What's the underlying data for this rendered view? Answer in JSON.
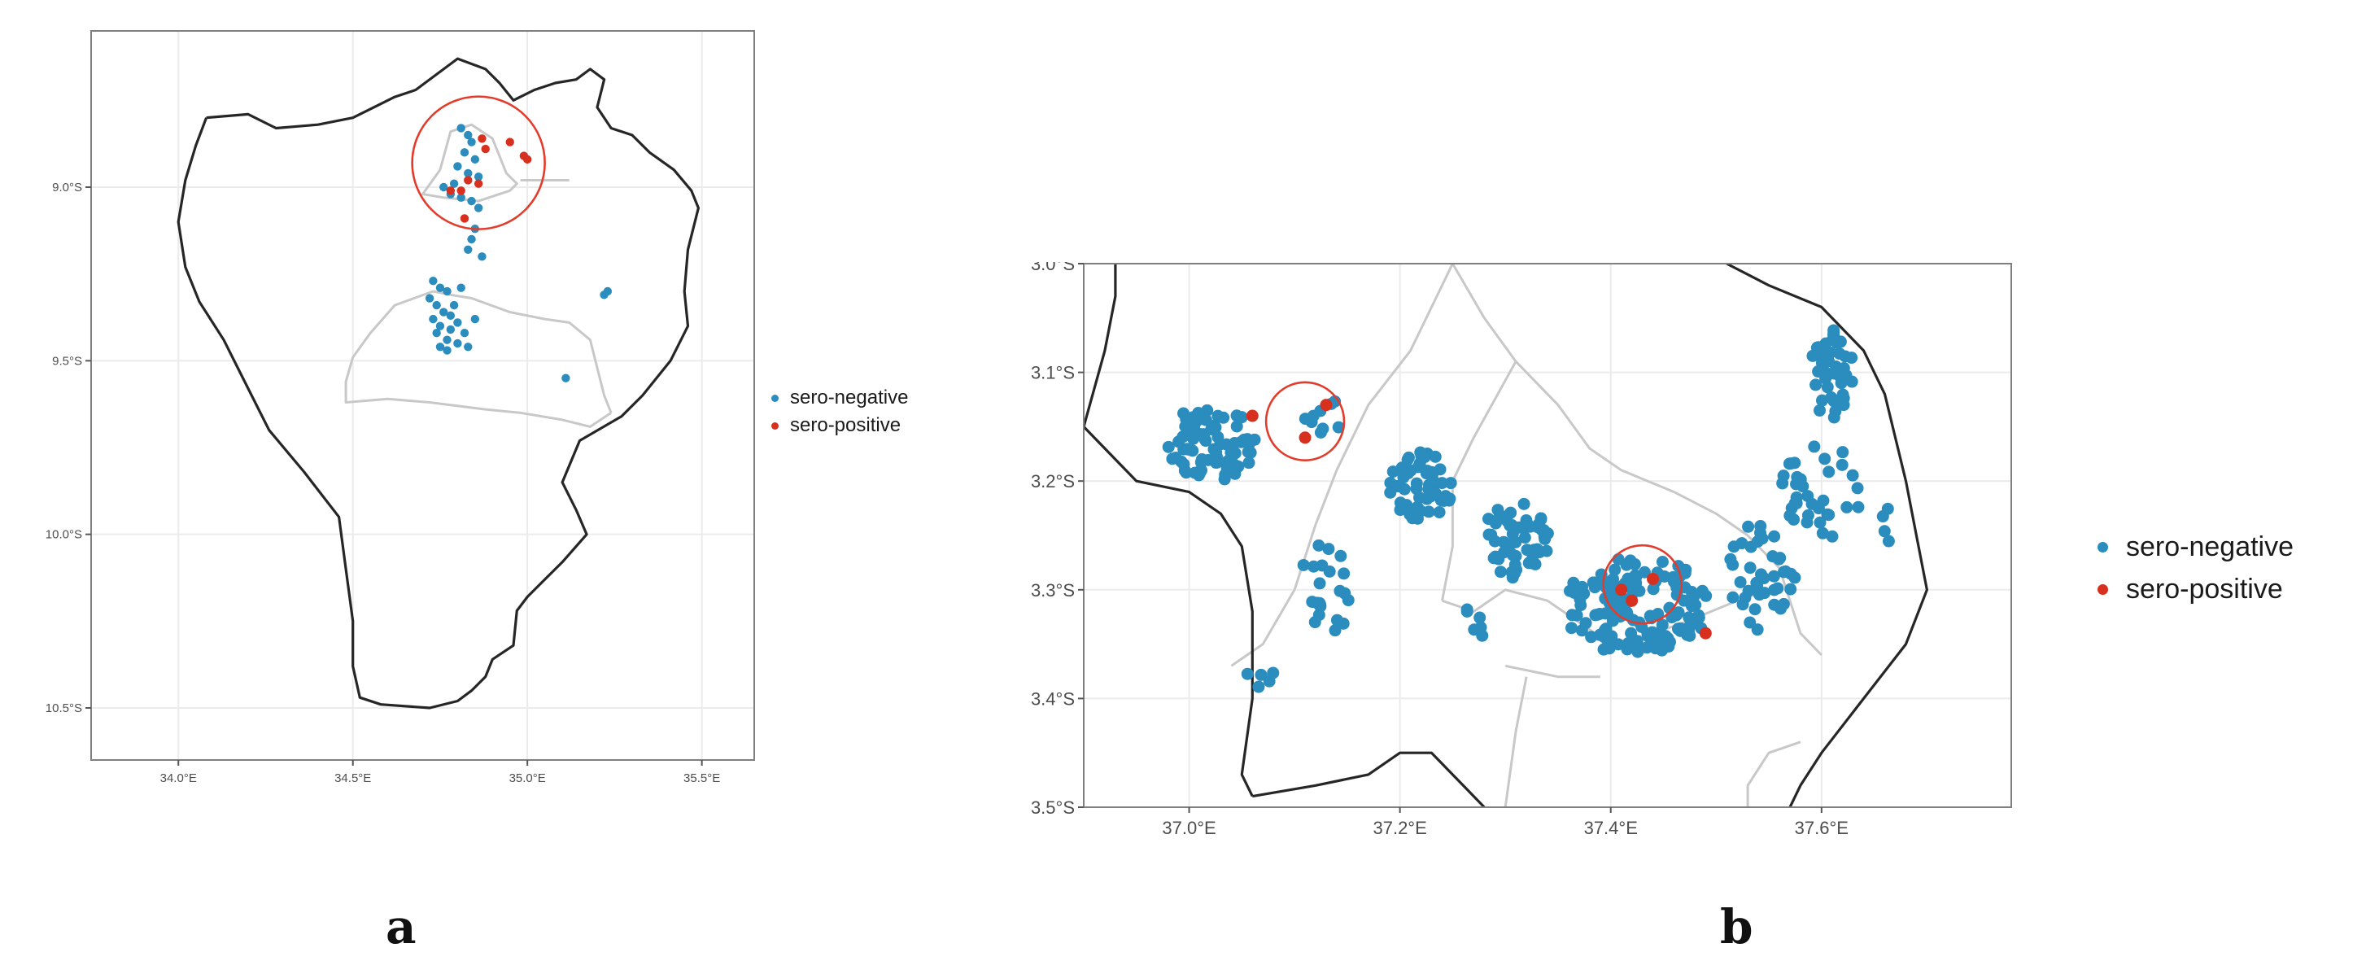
{
  "panels": [
    {
      "id": "a",
      "label": "a",
      "x_ticks": [
        "34.0°E",
        "34.5°E",
        "35.0°E",
        "35.5°E"
      ],
      "y_ticks": [
        "9.0°S",
        "9.5°S",
        "10.0°S",
        "10.5°S"
      ],
      "x_range": [
        33.75,
        35.65
      ],
      "y_range": [
        -10.65,
        -8.55
      ],
      "x_tick_values": [
        34.0,
        34.5,
        35.0,
        35.5
      ],
      "y_tick_values": [
        -9.0,
        -9.5,
        -10.0,
        -10.5
      ],
      "outer_border": [
        [
          34.08,
          -8.8
        ],
        [
          34.2,
          -8.79
        ],
        [
          34.28,
          -8.83
        ],
        [
          34.4,
          -8.82
        ],
        [
          34.5,
          -8.8
        ],
        [
          34.62,
          -8.74
        ],
        [
          34.68,
          -8.72
        ],
        [
          34.8,
          -8.63
        ],
        [
          34.88,
          -8.66
        ],
        [
          34.92,
          -8.7
        ],
        [
          34.96,
          -8.75
        ],
        [
          35.02,
          -8.72
        ],
        [
          35.08,
          -8.7
        ],
        [
          35.14,
          -8.69
        ],
        [
          35.18,
          -8.66
        ],
        [
          35.22,
          -8.69
        ],
        [
          35.2,
          -8.77
        ],
        [
          35.24,
          -8.83
        ],
        [
          35.3,
          -8.85
        ],
        [
          35.35,
          -8.9
        ],
        [
          35.42,
          -8.95
        ],
        [
          35.47,
          -9.01
        ],
        [
          35.49,
          -9.06
        ],
        [
          35.46,
          -9.18
        ],
        [
          35.45,
          -9.3
        ],
        [
          35.46,
          -9.4
        ],
        [
          35.41,
          -9.5
        ],
        [
          35.33,
          -9.6
        ],
        [
          35.27,
          -9.66
        ],
        [
          35.15,
          -9.73
        ],
        [
          35.1,
          -9.85
        ],
        [
          35.14,
          -9.93
        ],
        [
          35.17,
          -10.0
        ],
        [
          35.1,
          -10.08
        ],
        [
          35.05,
          -10.13
        ],
        [
          35.0,
          -10.18
        ],
        [
          34.97,
          -10.22
        ],
        [
          34.96,
          -10.32
        ],
        [
          34.9,
          -10.36
        ],
        [
          34.88,
          -10.41
        ],
        [
          34.84,
          -10.45
        ],
        [
          34.8,
          -10.48
        ],
        [
          34.72,
          -10.5
        ],
        [
          34.58,
          -10.49
        ],
        [
          34.52,
          -10.47
        ],
        [
          34.5,
          -10.38
        ],
        [
          34.5,
          -10.25
        ],
        [
          34.48,
          -10.1
        ],
        [
          34.46,
          -9.95
        ],
        [
          34.36,
          -9.82
        ],
        [
          34.26,
          -9.7
        ],
        [
          34.18,
          -9.54
        ],
        [
          34.13,
          -9.44
        ],
        [
          34.06,
          -9.33
        ],
        [
          34.02,
          -9.23
        ],
        [
          34.0,
          -9.1
        ],
        [
          34.02,
          -8.98
        ],
        [
          34.05,
          -8.88
        ],
        [
          34.08,
          -8.8
        ]
      ],
      "inner_borders": [
        [
          [
            34.75,
            -8.95
          ],
          [
            34.78,
            -8.84
          ],
          [
            34.84,
            -8.82
          ],
          [
            34.9,
            -8.86
          ],
          [
            34.94,
            -8.96
          ],
          [
            34.97,
            -8.99
          ],
          [
            34.95,
            -9.01
          ],
          [
            34.86,
            -9.04
          ],
          [
            34.76,
            -9.03
          ],
          [
            34.7,
            -9.02
          ],
          [
            34.75,
            -8.95
          ]
        ],
        [
          [
            34.73,
            -9.3
          ],
          [
            34.78,
            -9.31
          ],
          [
            34.84,
            -9.32
          ],
          [
            34.95,
            -9.36
          ],
          [
            35.05,
            -9.38
          ],
          [
            35.12,
            -9.39
          ],
          [
            35.18,
            -9.44
          ],
          [
            35.2,
            -9.52
          ],
          [
            35.22,
            -9.6
          ],
          [
            35.24,
            -9.65
          ]
        ],
        [
          [
            34.73,
            -9.3
          ],
          [
            34.62,
            -9.34
          ],
          [
            34.55,
            -9.42
          ],
          [
            34.5,
            -9.49
          ],
          [
            34.48,
            -9.56
          ],
          [
            34.48,
            -9.62
          ],
          [
            34.6,
            -9.61
          ],
          [
            34.72,
            -9.62
          ],
          [
            34.88,
            -9.64
          ],
          [
            34.98,
            -9.65
          ],
          [
            35.1,
            -9.67
          ],
          [
            35.18,
            -9.69
          ],
          [
            35.24,
            -9.65
          ]
        ],
        [
          [
            34.98,
            -8.98
          ],
          [
            35.05,
            -8.98
          ],
          [
            35.12,
            -8.98
          ]
        ]
      ],
      "highlight_circles": [
        {
          "lon": 34.86,
          "lat": -8.93,
          "radius_deg": 0.19,
          "color": "#e23c2c"
        }
      ],
      "legend": [
        {
          "label": "sero-negative",
          "color": "#2b8cbe"
        },
        {
          "label": "sero-positive",
          "color": "#d7301f"
        }
      ],
      "points_negative": [
        [
          34.81,
          -8.83
        ],
        [
          34.83,
          -8.85
        ],
        [
          34.84,
          -8.87
        ],
        [
          34.82,
          -8.9
        ],
        [
          34.85,
          -8.92
        ],
        [
          34.8,
          -8.94
        ],
        [
          34.83,
          -8.96
        ],
        [
          34.86,
          -8.97
        ],
        [
          34.79,
          -8.99
        ],
        [
          34.76,
          -9.0
        ],
        [
          34.78,
          -9.02
        ],
        [
          34.81,
          -9.03
        ],
        [
          34.84,
          -9.04
        ],
        [
          34.86,
          -9.06
        ],
        [
          34.85,
          -9.12
        ],
        [
          34.84,
          -9.15
        ],
        [
          34.83,
          -9.18
        ],
        [
          34.87,
          -9.2
        ],
        [
          34.73,
          -9.27
        ],
        [
          34.75,
          -9.29
        ],
        [
          34.77,
          -9.3
        ],
        [
          34.72,
          -9.32
        ],
        [
          34.74,
          -9.34
        ],
        [
          34.76,
          -9.36
        ],
        [
          34.78,
          -9.37
        ],
        [
          34.73,
          -9.38
        ],
        [
          34.75,
          -9.4
        ],
        [
          34.78,
          -9.41
        ],
        [
          34.8,
          -9.39
        ],
        [
          34.82,
          -9.42
        ],
        [
          34.77,
          -9.44
        ],
        [
          34.74,
          -9.42
        ],
        [
          34.79,
          -9.34
        ],
        [
          34.81,
          -9.29
        ],
        [
          34.75,
          -9.46
        ],
        [
          34.77,
          -9.47
        ],
        [
          34.8,
          -9.45
        ],
        [
          34.83,
          -9.46
        ],
        [
          34.85,
          -9.38
        ],
        [
          35.22,
          -9.31
        ],
        [
          35.23,
          -9.3
        ],
        [
          35.11,
          -9.55
        ]
      ],
      "points_positive": [
        [
          34.87,
          -8.86
        ],
        [
          34.88,
          -8.89
        ],
        [
          34.95,
          -8.87
        ],
        [
          34.99,
          -8.91
        ],
        [
          34.83,
          -8.98
        ],
        [
          34.81,
          -9.01
        ],
        [
          34.78,
          -9.01
        ],
        [
          34.86,
          -8.99
        ],
        [
          34.82,
          -9.09
        ],
        [
          35.0,
          -8.92
        ]
      ]
    },
    {
      "id": "b",
      "label": "b",
      "x_ticks": [
        "37.0°E",
        "37.2°E",
        "37.4°E",
        "37.6°E"
      ],
      "y_ticks": [
        "3.0°S",
        "3.1°S",
        "3.2°S",
        "3.3°S",
        "3.4°S",
        "3.5°S"
      ],
      "x_range": [
        36.9,
        37.78
      ],
      "y_range": [
        -3.5,
        -3.0
      ],
      "x_tick_values": [
        37.0,
        37.2,
        37.4,
        37.6
      ],
      "y_tick_values": [
        -3.0,
        -3.1,
        -3.2,
        -3.3,
        -3.4,
        -3.5
      ],
      "outer_borders": [
        [
          [
            36.93,
            -3.0
          ],
          [
            36.93,
            -3.03
          ],
          [
            36.92,
            -3.08
          ],
          [
            36.9,
            -3.15
          ]
        ],
        [
          [
            36.9,
            -3.15
          ],
          [
            36.95,
            -3.2
          ],
          [
            37.0,
            -3.21
          ],
          [
            37.03,
            -3.23
          ],
          [
            37.05,
            -3.26
          ],
          [
            37.06,
            -3.32
          ],
          [
            37.06,
            -3.4
          ],
          [
            37.05,
            -3.47
          ],
          [
            37.06,
            -3.49
          ]
        ],
        [
          [
            37.06,
            -3.49
          ],
          [
            37.12,
            -3.48
          ],
          [
            37.17,
            -3.47
          ],
          [
            37.2,
            -3.45
          ],
          [
            37.23,
            -3.45
          ],
          [
            37.26,
            -3.48
          ],
          [
            37.28,
            -3.5
          ]
        ],
        [
          [
            37.51,
            -3.0
          ],
          [
            37.55,
            -3.02
          ],
          [
            37.6,
            -3.04
          ],
          [
            37.64,
            -3.08
          ],
          [
            37.66,
            -3.12
          ],
          [
            37.68,
            -3.2
          ],
          [
            37.69,
            -3.25
          ],
          [
            37.7,
            -3.3
          ],
          [
            37.68,
            -3.35
          ],
          [
            37.64,
            -3.4
          ],
          [
            37.6,
            -3.45
          ],
          [
            37.58,
            -3.48
          ],
          [
            37.57,
            -3.5
          ]
        ]
      ],
      "inner_borders": [
        [
          [
            37.14,
            -3.19
          ],
          [
            37.17,
            -3.13
          ],
          [
            37.21,
            -3.08
          ],
          [
            37.25,
            -3.0
          ]
        ],
        [
          [
            37.14,
            -3.19
          ],
          [
            37.12,
            -3.24
          ],
          [
            37.1,
            -3.3
          ],
          [
            37.07,
            -3.35
          ],
          [
            37.04,
            -3.37
          ]
        ],
        [
          [
            37.25,
            -3.0
          ],
          [
            37.28,
            -3.05
          ],
          [
            37.31,
            -3.09
          ],
          [
            37.35,
            -3.13
          ],
          [
            37.38,
            -3.17
          ],
          [
            37.41,
            -3.19
          ],
          [
            37.46,
            -3.21
          ],
          [
            37.5,
            -3.23
          ],
          [
            37.53,
            -3.25
          ]
        ],
        [
          [
            37.31,
            -3.09
          ],
          [
            37.27,
            -3.16
          ],
          [
            37.25,
            -3.2
          ],
          [
            37.25,
            -3.26
          ],
          [
            37.24,
            -3.31
          ]
        ],
        [
          [
            37.24,
            -3.31
          ],
          [
            37.27,
            -3.32
          ],
          [
            37.3,
            -3.3
          ],
          [
            37.34,
            -3.31
          ],
          [
            37.37,
            -3.33
          ],
          [
            37.4,
            -3.35
          ],
          [
            37.44,
            -3.34
          ],
          [
            37.47,
            -3.33
          ],
          [
            37.52,
            -3.31
          ],
          [
            37.55,
            -3.3
          ]
        ],
        [
          [
            37.3,
            -3.37
          ],
          [
            37.35,
            -3.38
          ],
          [
            37.39,
            -3.38
          ]
        ],
        [
          [
            37.53,
            -3.25
          ],
          [
            37.56,
            -3.28
          ],
          [
            37.58,
            -3.34
          ],
          [
            37.6,
            -3.36
          ]
        ],
        [
          [
            37.32,
            -3.38
          ],
          [
            37.31,
            -3.43
          ],
          [
            37.3,
            -3.5
          ]
        ],
        [
          [
            37.58,
            -3.44
          ],
          [
            37.55,
            -3.45
          ],
          [
            37.53,
            -3.48
          ],
          [
            37.53,
            -3.5
          ]
        ]
      ],
      "highlight_circles": [
        {
          "lon": 37.11,
          "lat": -3.145,
          "radius_deg": 0.037,
          "color": "#e23c2c"
        },
        {
          "lon": 37.43,
          "lat": -3.295,
          "radius_deg": 0.037,
          "color": "#e23c2c"
        }
      ],
      "legend": [
        {
          "label": "sero-negative",
          "color": "#2b8cbe"
        },
        {
          "label": "sero-positive",
          "color": "#d7301f"
        }
      ],
      "points_positive": [
        [
          37.11,
          -3.16
        ],
        [
          37.13,
          -3.13
        ],
        [
          37.44,
          -3.29
        ],
        [
          37.42,
          -3.31
        ],
        [
          37.49,
          -3.34
        ],
        [
          37.41,
          -3.3
        ],
        [
          37.06,
          -3.14
        ]
      ],
      "clusters_negative": [
        {
          "lon": 37.02,
          "lat": -3.165,
          "rx": 0.045,
          "ry": 0.035,
          "n": 75,
          "seed": 1
        },
        {
          "lon": 37.13,
          "lat": -3.14,
          "rx": 0.02,
          "ry": 0.018,
          "n": 9,
          "seed": 2
        },
        {
          "lon": 37.22,
          "lat": -3.205,
          "rx": 0.03,
          "ry": 0.032,
          "n": 60,
          "seed": 3
        },
        {
          "lon": 37.31,
          "lat": -3.255,
          "rx": 0.033,
          "ry": 0.035,
          "n": 55,
          "seed": 4
        },
        {
          "lon": 37.425,
          "lat": -3.315,
          "rx": 0.07,
          "ry": 0.045,
          "n": 140,
          "seed": 5
        },
        {
          "lon": 37.54,
          "lat": -3.29,
          "rx": 0.035,
          "ry": 0.05,
          "n": 40,
          "seed": 6
        },
        {
          "lon": 37.61,
          "lat": -3.1,
          "rx": 0.02,
          "ry": 0.045,
          "n": 45,
          "seed": 7
        },
        {
          "lon": 37.6,
          "lat": -3.21,
          "rx": 0.04,
          "ry": 0.045,
          "n": 35,
          "seed": 8
        },
        {
          "lon": 37.13,
          "lat": -3.3,
          "rx": 0.025,
          "ry": 0.045,
          "n": 22,
          "seed": 9
        },
        {
          "lon": 37.07,
          "lat": -3.38,
          "rx": 0.015,
          "ry": 0.012,
          "n": 5,
          "seed": 10
        },
        {
          "lon": 37.27,
          "lat": -3.33,
          "rx": 0.015,
          "ry": 0.015,
          "n": 6,
          "seed": 11
        },
        {
          "lon": 37.66,
          "lat": -3.24,
          "rx": 0.01,
          "ry": 0.02,
          "n": 4,
          "seed": 12
        }
      ]
    }
  ]
}
